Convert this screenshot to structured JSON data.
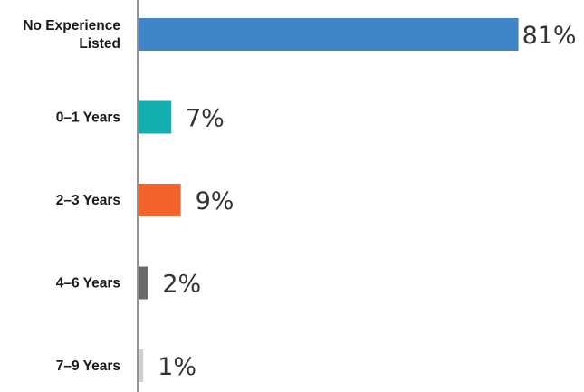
{
  "chart_data": {
    "type": "bar",
    "orientation": "horizontal",
    "title": "",
    "xlabel": "",
    "ylabel": "",
    "grid": false,
    "xlim": [
      0,
      100
    ],
    "categories": [
      [
        "No Experience",
        "Listed"
      ],
      [
        "0–1 Years"
      ],
      [
        "2–3 Years"
      ],
      [
        "4–6 Years"
      ],
      [
        "7–9 Years"
      ]
    ],
    "values": [
      81,
      7,
      9,
      2,
      1
    ],
    "value_labels": [
      "81%",
      "7%",
      "9%",
      "2%",
      "1%"
    ],
    "colors": [
      "#3f86c8",
      "#12aeb0",
      "#f2622a",
      "#6a6a6a",
      "#d0d0d0"
    ]
  }
}
